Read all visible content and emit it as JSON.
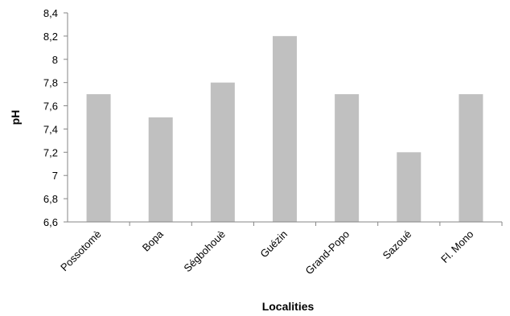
{
  "chart_data": {
    "type": "bar",
    "title": "",
    "xlabel": "Localities",
    "ylabel": "pH",
    "categories": [
      "Possotomè",
      "Bopa",
      "Ségbohouè",
      "Guézin",
      "Grand-Popo",
      "Sazoué",
      "Fl. Mono"
    ],
    "values": [
      7.7,
      7.5,
      7.8,
      8.2,
      7.7,
      7.2,
      7.7
    ],
    "ylim": [
      6.6,
      8.4
    ],
    "yticks": [
      "6,6",
      "6,8",
      "7",
      "7,2",
      "7,4",
      "7,6",
      "7,8",
      "8",
      "8,2",
      "8,4"
    ],
    "grid": false,
    "legend": "none",
    "bar_color": "#c0c0c0",
    "axis_color": "#868686"
  }
}
